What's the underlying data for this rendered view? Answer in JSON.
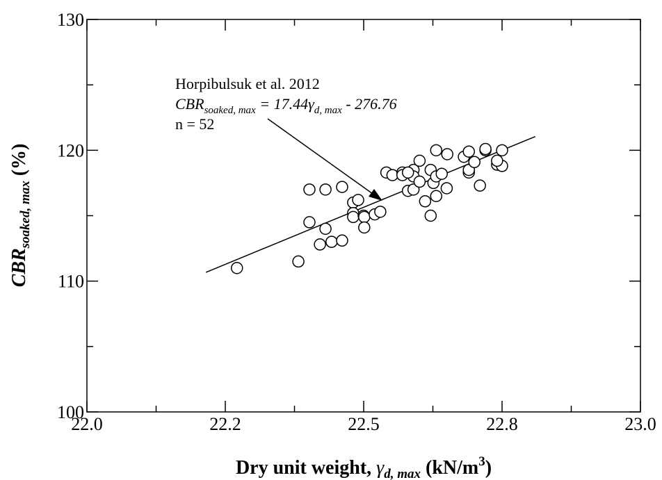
{
  "chart_data": {
    "type": "scatter",
    "x": [
      22.271,
      22.382,
      22.402,
      22.402,
      22.421,
      22.431,
      22.431,
      22.442,
      22.461,
      22.461,
      22.481,
      22.49,
      22.481,
      22.481,
      22.5,
      22.501,
      22.501,
      22.52,
      22.53,
      22.541,
      22.552,
      22.57,
      22.57,
      22.58,
      22.59,
      22.59,
      22.59,
      22.601,
      22.601,
      22.611,
      22.621,
      22.621,
      22.626,
      22.631,
      22.631,
      22.631,
      22.641,
      22.65,
      22.651,
      22.681,
      22.69,
      22.69,
      22.69,
      22.7,
      22.71,
      22.72,
      22.72,
      22.741,
      22.75,
      22.75,
      22.741,
      22.58
    ],
    "values": [
      111.0,
      111.5,
      117.0,
      114.5,
      112.8,
      117.0,
      114.0,
      113.0,
      117.2,
      113.1,
      116.0,
      116.2,
      115.2,
      114.9,
      115.0,
      114.9,
      114.1,
      115.1,
      115.3,
      118.3,
      118.1,
      118.3,
      118.1,
      116.9,
      117.0,
      118.5,
      118.0,
      119.2,
      117.6,
      116.1,
      118.5,
      115.0,
      117.5,
      118.0,
      116.5,
      120.0,
      118.2,
      117.1,
      119.7,
      119.5,
      118.3,
      118.5,
      119.9,
      119.1,
      117.3,
      120.0,
      120.1,
      118.9,
      120.0,
      118.8,
      119.2,
      118.3
    ],
    "xlim": [
      22.0,
      23.0
    ],
    "ylim": [
      100,
      130
    ],
    "xticks": [
      {
        "value": 22.0,
        "label": "22.0"
      },
      {
        "value": 22.25,
        "label": "22.2"
      },
      22.5,
      {
        "value": 22.75,
        "label": "22.8"
      },
      {
        "value": 23.0,
        "label": "23.0"
      }
    ],
    "xminorticks": [
      22.125,
      22.375,
      22.625,
      22.875
    ],
    "yticks": [
      100,
      110,
      120,
      130
    ],
    "yminorticks": [
      105,
      115,
      125
    ],
    "xlabel": [
      "Dry unit weight, ",
      "γ",
      "d, max",
      " (kN/m",
      "3",
      ")"
    ],
    "ylabel": [
      "CBR",
      "soaked, max",
      "  (%)"
    ],
    "fit_line": {
      "x": [
        22.215,
        22.81
      ],
      "y": [
        110.67,
        121.05
      ]
    },
    "annotation": {
      "source": "Horpibulsuk et al. 2012",
      "equation": [
        "CBR",
        "soaked, max",
        " = 17.44",
        "γ",
        "d, max",
        "  - 276.76"
      ],
      "n": "n = 52"
    }
  }
}
